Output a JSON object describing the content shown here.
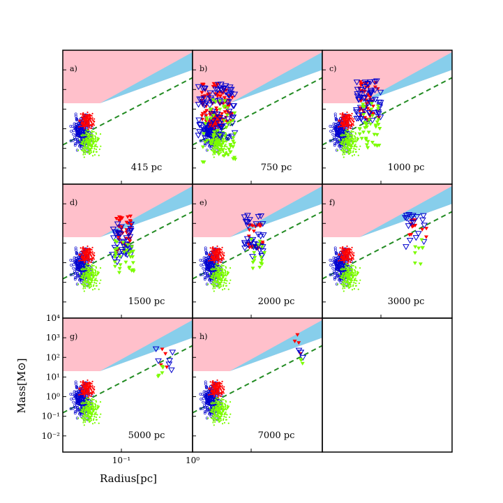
{
  "chart_data": {
    "type": "scatter",
    "x_scale": "log",
    "y_scale": "log",
    "xlim": [
      0.015,
      1.0
    ],
    "ylim": [
      0.0015,
      10000
    ],
    "xlabel": "Radius[pc]",
    "ylabel": "Mass[M⊙]",
    "x_ticks": [
      0.1,
      1.0
    ],
    "x_tick_labels": [
      "10⁻¹",
      "10⁰"
    ],
    "y_ticks": [
      0.01,
      0.1,
      1,
      10,
      100,
      1000,
      10000
    ],
    "y_tick_labels": [
      "10⁻²",
      "10⁻¹",
      "10⁰",
      "10¹",
      "10²",
      "10³",
      "10⁴"
    ],
    "colors": {
      "pink_region": "#ffc0cb",
      "blue_region": "#87ceeb",
      "dashed_line": "#228b22",
      "open_blue": "#0000cd",
      "red": "#ff0000",
      "green": "#7cfc00"
    },
    "shaded_regions": [
      {
        "color": "pink",
        "upper_boundary": "top of axes",
        "lower_boundary": [
          [
            0.015,
            20
          ],
          [
            0.05,
            20
          ],
          [
            1.0,
            1000
          ]
        ]
      },
      {
        "color": "blue",
        "between": [
          [
            [
              0.05,
              20
            ],
            [
              1.0,
              1000
            ]
          ],
          [
            [
              0.05,
              20
            ],
            [
              1.0,
              8000
            ]
          ]
        ]
      }
    ],
    "dashed_line": {
      "x": [
        0.015,
        1.0
      ],
      "y": [
        0.15,
        400
      ]
    },
    "panels": [
      {
        "letter": "a)",
        "label": "415 pc",
        "clusters": [],
        "dense_at_zero_offset": true
      },
      {
        "letter": "b)",
        "label": "750 pc",
        "clusters": [
          {
            "series": "red",
            "x": [
              0.02,
              0.055
            ],
            "y": [
              1.5,
              200
            ],
            "n": 90
          },
          {
            "series": "open_blue",
            "x": [
              0.018,
              0.06
            ],
            "y": [
              0.3,
              200
            ],
            "n": 90
          },
          {
            "series": "green",
            "x": [
              0.02,
              0.06
            ],
            "y": [
              0.02,
              30
            ],
            "n": 60
          }
        ]
      },
      {
        "letter": "c)",
        "label": "1000 pc",
        "clusters": [
          {
            "series": "red",
            "x": [
              0.05,
              0.095
            ],
            "y": [
              3,
              250
            ],
            "n": 45
          },
          {
            "series": "open_blue",
            "x": [
              0.045,
              0.1
            ],
            "y": [
              2,
              300
            ],
            "n": 55
          },
          {
            "series": "green",
            "x": [
              0.05,
              0.1
            ],
            "y": [
              0.1,
              20
            ],
            "n": 40
          }
        ]
      },
      {
        "letter": "d)",
        "label": "1500 pc",
        "clusters": [
          {
            "series": "red",
            "x": [
              0.08,
              0.14
            ],
            "y": [
              3,
              250
            ],
            "n": 40
          },
          {
            "series": "open_blue",
            "x": [
              0.07,
              0.14
            ],
            "y": [
              1,
              100
            ],
            "n": 40
          },
          {
            "series": "green",
            "x": [
              0.08,
              0.15
            ],
            "y": [
              0.3,
              20
            ],
            "n": 30
          }
        ]
      },
      {
        "letter": "e)",
        "label": "2000 pc",
        "clusters": [
          {
            "series": "red",
            "x": [
              0.09,
              0.15
            ],
            "y": [
              5,
              100
            ],
            "n": 25
          },
          {
            "series": "open_blue",
            "x": [
              0.08,
              0.15
            ],
            "y": [
              2,
              300
            ],
            "n": 35
          },
          {
            "series": "green",
            "x": [
              0.1,
              0.16
            ],
            "y": [
              0.5,
              20
            ],
            "n": 15
          }
        ]
      },
      {
        "letter": "f)",
        "label": "3000 pc",
        "clusters": [
          {
            "series": "red",
            "x": [
              0.25,
              0.45
            ],
            "y": [
              20,
              200
            ],
            "n": 12
          },
          {
            "series": "open_blue",
            "x": [
              0.2,
              0.45
            ],
            "y": [
              5,
              300
            ],
            "n": 18
          },
          {
            "series": "green",
            "x": [
              0.25,
              0.4
            ],
            "y": [
              0.8,
              15
            ],
            "n": 8
          }
        ]
      },
      {
        "letter": "g)",
        "label": "5000 pc",
        "clusters": [
          {
            "series": "red",
            "x": [
              0.3,
              0.45
            ],
            "y": [
              30,
              300
            ],
            "n": 4
          },
          {
            "series": "open_blue",
            "x": [
              0.3,
              0.65
            ],
            "y": [
              20,
              300
            ],
            "n": 6
          },
          {
            "series": "green",
            "x": [
              0.3,
              0.4
            ],
            "y": [
              10,
              60
            ],
            "n": 5
          }
        ]
      },
      {
        "letter": "h)",
        "label": "7000 pc",
        "clusters": [
          {
            "series": "red",
            "x": [
              0.4,
              0.55
            ],
            "y": [
              100,
              1500
            ],
            "n": 4
          },
          {
            "series": "open_blue",
            "x": [
              0.45,
              0.6
            ],
            "y": [
              50,
              250
            ],
            "n": 4
          },
          {
            "series": "green",
            "x": [
              0.45,
              0.55
            ],
            "y": [
              30,
              80
            ],
            "n": 3
          }
        ]
      }
    ]
  }
}
